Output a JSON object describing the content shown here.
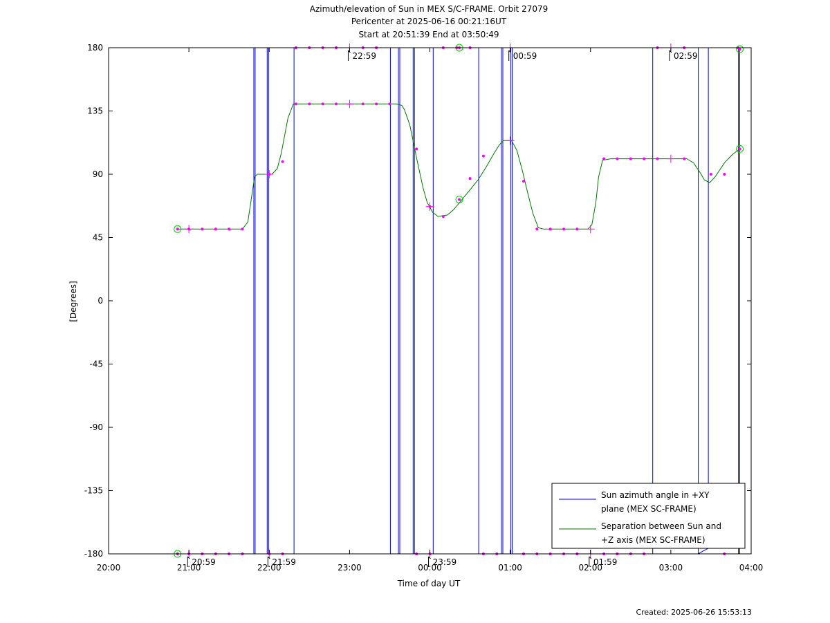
{
  "chart_data": {
    "type": "line",
    "title": [
      "Azimuth/elevation of Sun in MEX S/C-FRAME.  Orbit 27079",
      "Pericenter at 2025-06-16 00:21:16UT",
      "Start at 20:51:39 End at 03:50:49"
    ],
    "xlabel": "Time of day UT",
    "ylabel": "[Degrees]",
    "created": "Created: 2025-06-26 15:53:13",
    "xlim": [
      0,
      480
    ],
    "ylim": [
      -180,
      180
    ],
    "x_tick_labels": [
      "20:00",
      "21:00",
      "22:00",
      "23:00",
      "00:00",
      "01:00",
      "02:00",
      "03:00",
      "04:00"
    ],
    "x_tick_values": [
      0,
      60,
      120,
      180,
      240,
      300,
      360,
      420,
      480
    ],
    "y_tick_labels": [
      "180",
      "135",
      "90",
      "45",
      "0",
      "-45",
      "-90",
      "-135",
      "-180"
    ],
    "y_tick_values": [
      180,
      135,
      90,
      45,
      0,
      -45,
      -90,
      -135,
      -180
    ],
    "legend": {
      "placement": "bottom-right",
      "entries": [
        {
          "label_lines": [
            "Sun azimuth angle in +XY",
            "plane (MEX SC-FRAME)"
          ],
          "color": "#0000cc"
        },
        {
          "label_lines": [
            "Separation between Sun and",
            "+Z axis (MEX SC-FRAME)"
          ],
          "color": "#007700"
        }
      ]
    },
    "series": [
      {
        "name": "Sun azimuth angle in +XY plane (MEX SC-FRAME)",
        "color": "#0000cc",
        "points": [
          [
            51.5,
            -180
          ],
          [
            108.5,
            -180
          ],
          [
            108.5,
            180
          ],
          [
            109.5,
            180
          ],
          [
            109.5,
            -180
          ],
          [
            118.5,
            -180
          ],
          [
            118.5,
            180
          ],
          [
            119.5,
            180
          ],
          [
            119.5,
            -180
          ],
          [
            138.5,
            -180
          ],
          [
            138.5,
            180
          ],
          [
            210.5,
            180
          ],
          [
            210.5,
            -180
          ],
          [
            216.5,
            -180
          ],
          [
            216.5,
            180
          ],
          [
            217.5,
            180
          ],
          [
            217.5,
            -180
          ],
          [
            227.5,
            -180
          ],
          [
            227.5,
            180
          ],
          [
            228.5,
            180
          ],
          [
            228.5,
            -180
          ],
          [
            242.5,
            -180
          ],
          [
            242.5,
            180
          ],
          [
            276.5,
            180
          ],
          [
            276.5,
            -180
          ],
          [
            293.5,
            -180
          ],
          [
            293.5,
            180
          ],
          [
            294.5,
            180
          ],
          [
            294.5,
            -180
          ],
          [
            300.5,
            -180
          ],
          [
            300.5,
            180
          ],
          [
            301.5,
            180
          ],
          [
            301.5,
            -180
          ],
          [
            406.5,
            -180
          ],
          [
            406.5,
            180
          ],
          [
            440.5,
            180
          ],
          [
            440.5,
            -180
          ],
          [
            444,
            -178
          ],
          [
            448,
            -176
          ],
          [
            448,
            180
          ],
          [
            470.5,
            180
          ],
          [
            470.5,
            -180
          ],
          [
            471.5,
            -180
          ],
          [
            471.5,
            180
          ]
        ]
      },
      {
        "name": "Separation between Sun and +Z axis (MEX SC-FRAME)",
        "color": "#007700",
        "points": [
          [
            51.5,
            51
          ],
          [
            60,
            51
          ],
          [
            100,
            51
          ],
          [
            104,
            56
          ],
          [
            107,
            75
          ],
          [
            109,
            88
          ],
          [
            111,
            90
          ],
          [
            122,
            90
          ],
          [
            126,
            94
          ],
          [
            129,
            105
          ],
          [
            134,
            130
          ],
          [
            138,
            140
          ],
          [
            215,
            140
          ],
          [
            219,
            139
          ],
          [
            221,
            136
          ],
          [
            225,
            125
          ],
          [
            230,
            102
          ],
          [
            235,
            80
          ],
          [
            238,
            70
          ],
          [
            242,
            63
          ],
          [
            246,
            60
          ],
          [
            253,
            61
          ],
          [
            258,
            65
          ],
          [
            264,
            72
          ],
          [
            270,
            79
          ],
          [
            276,
            86
          ],
          [
            282,
            95
          ],
          [
            288,
            105
          ],
          [
            292,
            111
          ],
          [
            295,
            114
          ],
          [
            301,
            114
          ],
          [
            305,
            107
          ],
          [
            309,
            93
          ],
          [
            313,
            77
          ],
          [
            317,
            62
          ],
          [
            321,
            52
          ],
          [
            325,
            51
          ],
          [
            358,
            51
          ],
          [
            361,
            54
          ],
          [
            364,
            70
          ],
          [
            366,
            88
          ],
          [
            369,
            100
          ],
          [
            375,
            101
          ],
          [
            432,
            101
          ],
          [
            437,
            98
          ],
          [
            442,
            91
          ],
          [
            445,
            86
          ],
          [
            449,
            84
          ],
          [
            453,
            88
          ],
          [
            460,
            98
          ],
          [
            466,
            104
          ],
          [
            471.5,
            108
          ]
        ]
      }
    ],
    "markers": {
      "color": "#ff00ff",
      "azimuth_dots": [
        [
          60,
          -180
        ],
        [
          70,
          -180
        ],
        [
          80,
          -180
        ],
        [
          90,
          -180
        ],
        [
          100,
          -180
        ],
        [
          120,
          -180
        ],
        [
          130,
          -180
        ],
        [
          140,
          180
        ],
        [
          150,
          180
        ],
        [
          160,
          180
        ],
        [
          170,
          180
        ],
        [
          190,
          180
        ],
        [
          200,
          180
        ],
        [
          230,
          -180
        ],
        [
          240,
          -180
        ],
        [
          250,
          180
        ],
        [
          260,
          180
        ],
        [
          270,
          180
        ],
        [
          280,
          -180
        ],
        [
          290,
          -180
        ],
        [
          310,
          -180
        ],
        [
          320,
          -180
        ],
        [
          330,
          -180
        ],
        [
          340,
          -180
        ],
        [
          350,
          -180
        ],
        [
          370,
          -180
        ],
        [
          380,
          -180
        ],
        [
          390,
          -180
        ],
        [
          400,
          -180
        ],
        [
          410,
          180
        ],
        [
          430,
          180
        ],
        [
          460,
          -180
        ],
        [
          470,
          180
        ]
      ],
      "separation_dots": [
        [
          60,
          51
        ],
        [
          70,
          51
        ],
        [
          80,
          51
        ],
        [
          90,
          51
        ],
        [
          100,
          51
        ],
        [
          120,
          90
        ],
        [
          130,
          99
        ],
        [
          140,
          140
        ],
        [
          150,
          140
        ],
        [
          160,
          140
        ],
        [
          170,
          140
        ],
        [
          190,
          140
        ],
        [
          200,
          140
        ],
        [
          210,
          140
        ],
        [
          230,
          108
        ],
        [
          240,
          67
        ],
        [
          250,
          60
        ],
        [
          270,
          87
        ],
        [
          280,
          103
        ],
        [
          310,
          85
        ],
        [
          320,
          51
        ],
        [
          330,
          51
        ],
        [
          340,
          51
        ],
        [
          350,
          51
        ],
        [
          370,
          101
        ],
        [
          380,
          101
        ],
        [
          390,
          101
        ],
        [
          400,
          101
        ],
        [
          410,
          101
        ],
        [
          430,
          101
        ],
        [
          450,
          90
        ],
        [
          460,
          90
        ]
      ],
      "hour_crosses": [
        [
          60,
          -180
        ],
        [
          120,
          -180
        ],
        [
          180,
          180
        ],
        [
          240,
          -180
        ],
        [
          300,
          180
        ],
        [
          360,
          -180
        ],
        [
          420,
          180
        ],
        [
          60,
          51
        ],
        [
          120,
          90
        ],
        [
          180,
          140
        ],
        [
          240,
          67
        ],
        [
          300,
          114
        ],
        [
          360,
          51
        ],
        [
          420,
          101
        ]
      ],
      "circles": [
        [
          51.5,
          -180
        ],
        [
          51.5,
          51
        ],
        [
          262,
          180
        ],
        [
          262,
          72
        ],
        [
          471.5,
          179
        ],
        [
          471.5,
          108
        ]
      ]
    },
    "annotations": [
      {
        "label": "20:59",
        "x": 59,
        "y": -180,
        "position": "below"
      },
      {
        "label": "21:59",
        "x": 119,
        "y": -180,
        "position": "below"
      },
      {
        "label": "22:59",
        "x": 179,
        "y": 180,
        "position": "below"
      },
      {
        "label": "23:59",
        "x": 239,
        "y": -180,
        "position": "below"
      },
      {
        "label": "00:59",
        "x": 299,
        "y": 180,
        "position": "below"
      },
      {
        "label": "01:59",
        "x": 359,
        "y": -180,
        "position": "below"
      },
      {
        "label": "02:59",
        "x": 419,
        "y": 180,
        "position": "below"
      }
    ]
  }
}
